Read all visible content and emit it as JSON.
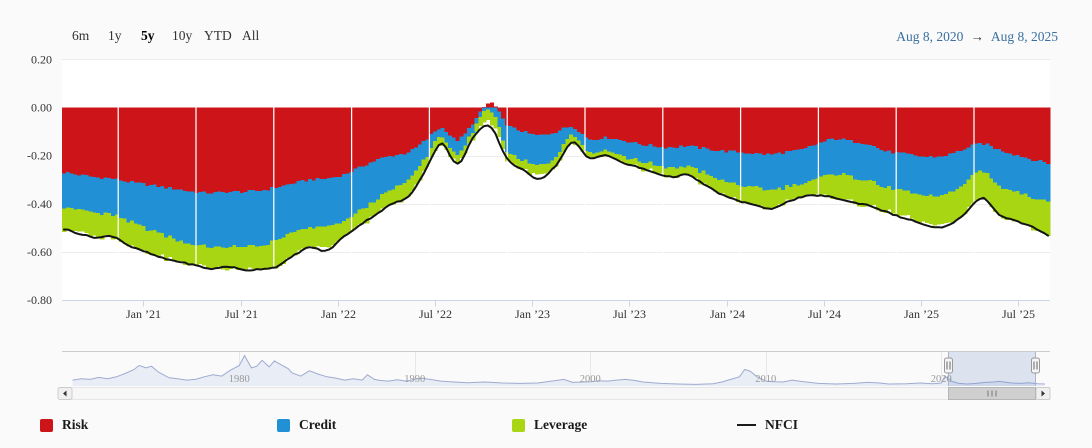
{
  "toolbar": {
    "zoom_buttons": [
      {
        "label": "6m",
        "selected": false
      },
      {
        "label": "1y",
        "selected": false
      },
      {
        "label": "5y",
        "selected": true
      },
      {
        "label": "10y",
        "selected": false
      },
      {
        "label": "YTD",
        "selected": false
      },
      {
        "label": "All",
        "selected": false
      }
    ],
    "date_from": "Aug 8, 2020",
    "arrow": "→",
    "date_to": "Aug 8, 2025"
  },
  "chart_data": {
    "type": "area",
    "stacking": "normal",
    "title": "",
    "x_axis": {
      "tick_labels": [
        "Jan ’21",
        "Jul ’21",
        "Jan ’22",
        "Jul ’22",
        "Jan ’23",
        "Jul ’23",
        "Jan ’24",
        "Jul ’24",
        "Jan ’25",
        "Jul ’25"
      ],
      "visible_range": [
        "Aug 8, 2020",
        "Aug 8, 2025"
      ],
      "sample_interval": "monthly"
    },
    "y_axis": {
      "tick_labels": [
        "0.20",
        "0.00",
        "-0.20",
        "-0.40",
        "-0.60",
        "-0.80"
      ],
      "tick_values": [
        0.2,
        0.0,
        -0.2,
        -0.4,
        -0.6,
        -0.8
      ],
      "range": [
        -0.8,
        0.2
      ],
      "grid": true
    },
    "series": [
      {
        "name": "Risk",
        "color": "#cc1419",
        "values": [
          -0.27,
          -0.28,
          -0.29,
          -0.295,
          -0.31,
          -0.32,
          -0.33,
          -0.34,
          -0.35,
          -0.355,
          -0.35,
          -0.35,
          -0.345,
          -0.33,
          -0.315,
          -0.3,
          -0.295,
          -0.28,
          -0.25,
          -0.22,
          -0.2,
          -0.185,
          -0.14,
          -0.085,
          -0.135,
          -0.06,
          0.02,
          -0.07,
          -0.1,
          -0.115,
          -0.1,
          -0.08,
          -0.13,
          -0.125,
          -0.135,
          -0.15,
          -0.16,
          -0.165,
          -0.16,
          -0.17,
          -0.18,
          -0.185,
          -0.19,
          -0.195,
          -0.185,
          -0.175,
          -0.15,
          -0.13,
          -0.14,
          -0.15,
          -0.18,
          -0.19,
          -0.2,
          -0.205,
          -0.195,
          -0.17,
          -0.15,
          -0.175,
          -0.195,
          -0.215,
          -0.23
        ]
      },
      {
        "name": "Credit",
        "color": "#2190d4",
        "values": [
          -0.14,
          -0.145,
          -0.148,
          -0.15,
          -0.165,
          -0.18,
          -0.195,
          -0.21,
          -0.22,
          -0.225,
          -0.228,
          -0.23,
          -0.228,
          -0.22,
          -0.205,
          -0.2,
          -0.2,
          -0.195,
          -0.18,
          -0.165,
          -0.14,
          -0.115,
          -0.075,
          -0.035,
          -0.065,
          -0.03,
          -0.015,
          -0.105,
          -0.12,
          -0.125,
          -0.1,
          -0.03,
          -0.055,
          -0.05,
          -0.065,
          -0.07,
          -0.078,
          -0.085,
          -0.085,
          -0.1,
          -0.12,
          -0.135,
          -0.14,
          -0.148,
          -0.145,
          -0.145,
          -0.145,
          -0.145,
          -0.148,
          -0.15,
          -0.15,
          -0.155,
          -0.16,
          -0.165,
          -0.16,
          -0.14,
          -0.115,
          -0.148,
          -0.15,
          -0.155,
          -0.16
        ]
      },
      {
        "name": "Leverage",
        "color": "#a8d612",
        "values": [
          -0.095,
          -0.095,
          -0.1,
          -0.095,
          -0.1,
          -0.1,
          -0.095,
          -0.09,
          -0.085,
          -0.085,
          -0.088,
          -0.095,
          -0.098,
          -0.115,
          -0.095,
          -0.082,
          -0.088,
          -0.065,
          -0.06,
          -0.058,
          -0.062,
          -0.068,
          -0.05,
          -0.03,
          -0.035,
          -0.03,
          -0.05,
          -0.035,
          -0.04,
          -0.042,
          -0.04,
          -0.032,
          -0.025,
          -0.022,
          -0.028,
          -0.028,
          -0.032,
          -0.038,
          -0.035,
          -0.048,
          -0.058,
          -0.065,
          -0.072,
          -0.078,
          -0.065,
          -0.052,
          -0.07,
          -0.1,
          -0.105,
          -0.105,
          -0.1,
          -0.105,
          -0.11,
          -0.12,
          -0.125,
          -0.12,
          -0.11,
          -0.12,
          -0.125,
          -0.125,
          -0.14
        ]
      }
    ],
    "line_series": {
      "name": "NFCI",
      "color": "#141414",
      "values": [
        -0.505,
        -0.525,
        -0.54,
        -0.535,
        -0.575,
        -0.6,
        -0.625,
        -0.64,
        -0.655,
        -0.67,
        -0.66,
        -0.675,
        -0.67,
        -0.66,
        -0.615,
        -0.58,
        -0.595,
        -0.54,
        -0.49,
        -0.445,
        -0.4,
        -0.37,
        -0.265,
        -0.15,
        -0.235,
        -0.12,
        -0.08,
        -0.21,
        -0.26,
        -0.295,
        -0.24,
        -0.145,
        -0.21,
        -0.197,
        -0.228,
        -0.248,
        -0.27,
        -0.288,
        -0.28,
        -0.318,
        -0.358,
        -0.385,
        -0.402,
        -0.421,
        -0.395,
        -0.372,
        -0.365,
        -0.375,
        -0.393,
        -0.405,
        -0.43,
        -0.455,
        -0.475,
        -0.498,
        -0.488,
        -0.435,
        -0.375,
        -0.443,
        -0.47,
        -0.495,
        -0.53
      ]
    }
  },
  "navigator": {
    "decade_labels": [
      "1980",
      "1990",
      "2000",
      "2010",
      "2020"
    ],
    "decade_years": [
      1980,
      1990,
      2000,
      2010,
      2020
    ],
    "year_range": [
      1970,
      2026
    ],
    "selected_range": [
      "Aug 8, 2020",
      "Aug 8, 2025"
    ],
    "series": {
      "name": "NFCI full history",
      "points": [
        [
          1970.5,
          0.18
        ],
        [
          1971,
          0.22
        ],
        [
          1971.5,
          0.2
        ],
        [
          1972,
          0.26
        ],
        [
          1972.5,
          0.22
        ],
        [
          1973,
          0.28
        ],
        [
          1973.5,
          0.38
        ],
        [
          1974,
          0.5
        ],
        [
          1974.3,
          0.62
        ],
        [
          1974.7,
          0.55
        ],
        [
          1975,
          0.6
        ],
        [
          1975.4,
          0.42
        ],
        [
          1976,
          0.25
        ],
        [
          1976.5,
          0.22
        ],
        [
          1977,
          0.18
        ],
        [
          1977.5,
          0.2
        ],
        [
          1978,
          0.28
        ],
        [
          1978.5,
          0.34
        ],
        [
          1979,
          0.3
        ],
        [
          1979.5,
          0.48
        ],
        [
          1980,
          0.62
        ],
        [
          1980.3,
          0.92
        ],
        [
          1980.7,
          0.55
        ],
        [
          1981,
          0.6
        ],
        [
          1981.3,
          0.78
        ],
        [
          1981.7,
          0.58
        ],
        [
          1982,
          0.76
        ],
        [
          1982.4,
          0.64
        ],
        [
          1982.8,
          0.52
        ],
        [
          1983,
          0.4
        ],
        [
          1983.5,
          0.3
        ],
        [
          1984,
          0.46
        ],
        [
          1984.5,
          0.36
        ],
        [
          1985,
          0.28
        ],
        [
          1985.5,
          0.24
        ],
        [
          1986,
          0.18
        ],
        [
          1986.5,
          0.22
        ],
        [
          1987,
          0.18
        ],
        [
          1987.3,
          0.34
        ],
        [
          1987.7,
          0.2
        ],
        [
          1988,
          0.17
        ],
        [
          1988.5,
          0.15
        ],
        [
          1989,
          0.19
        ],
        [
          1989.5,
          0.15
        ],
        [
          1990,
          0.2
        ],
        [
          1990.4,
          0.24
        ],
        [
          1991,
          0.19
        ],
        [
          1991.5,
          0.15
        ],
        [
          1992,
          0.13
        ],
        [
          1993,
          0.1
        ],
        [
          1994,
          0.12
        ],
        [
          1995,
          0.09
        ],
        [
          1996,
          0.08
        ],
        [
          1997,
          0.09
        ],
        [
          1997.8,
          0.15
        ],
        [
          1998.5,
          0.2
        ],
        [
          1999,
          0.11
        ],
        [
          2000,
          0.13
        ],
        [
          2000.5,
          0.16
        ],
        [
          2001,
          0.15
        ],
        [
          2001.5,
          0.18
        ],
        [
          2002,
          0.2
        ],
        [
          2002.5,
          0.17
        ],
        [
          2003,
          0.12
        ],
        [
          2004,
          0.08
        ],
        [
          2005,
          0.06
        ],
        [
          2006,
          0.05
        ],
        [
          2007,
          0.07
        ],
        [
          2007.5,
          0.12
        ],
        [
          2008,
          0.2
        ],
        [
          2008.5,
          0.28
        ],
        [
          2008.8,
          0.5
        ],
        [
          2009.1,
          0.45
        ],
        [
          2009.5,
          0.28
        ],
        [
          2010,
          0.15
        ],
        [
          2010.5,
          0.13
        ],
        [
          2011,
          0.12
        ],
        [
          2011.5,
          0.18
        ],
        [
          2012,
          0.14
        ],
        [
          2012.5,
          0.11
        ],
        [
          2013,
          0.08
        ],
        [
          2014,
          0.06
        ],
        [
          2015,
          0.08
        ],
        [
          2015.8,
          0.11
        ],
        [
          2016.5,
          0.09
        ],
        [
          2017,
          0.06
        ],
        [
          2018,
          0.07
        ],
        [
          2018.8,
          0.09
        ],
        [
          2019.5,
          0.07
        ],
        [
          2020,
          0.09
        ],
        [
          2020.2,
          0.3
        ],
        [
          2020.6,
          0.14
        ],
        [
          2021,
          0.08
        ],
        [
          2021.5,
          0.06
        ],
        [
          2022,
          0.08
        ],
        [
          2022.5,
          0.11
        ],
        [
          2023,
          0.12
        ],
        [
          2023.3,
          0.14
        ],
        [
          2024,
          0.09
        ],
        [
          2024.5,
          0.08
        ],
        [
          2025,
          0.1
        ],
        [
          2025.5,
          0.07
        ],
        [
          2025.9,
          0.06
        ]
      ]
    }
  },
  "scrollbar": {
    "grip": "III"
  },
  "legend": {
    "items": [
      {
        "label": "Risk",
        "color": "#cc1419",
        "symbol": "square"
      },
      {
        "label": "Credit",
        "color": "#2190d4",
        "symbol": "square"
      },
      {
        "label": "Leverage",
        "color": "#a8d612",
        "symbol": "square"
      },
      {
        "label": "NFCI",
        "color": "#1a1a1a",
        "symbol": "line"
      }
    ]
  }
}
